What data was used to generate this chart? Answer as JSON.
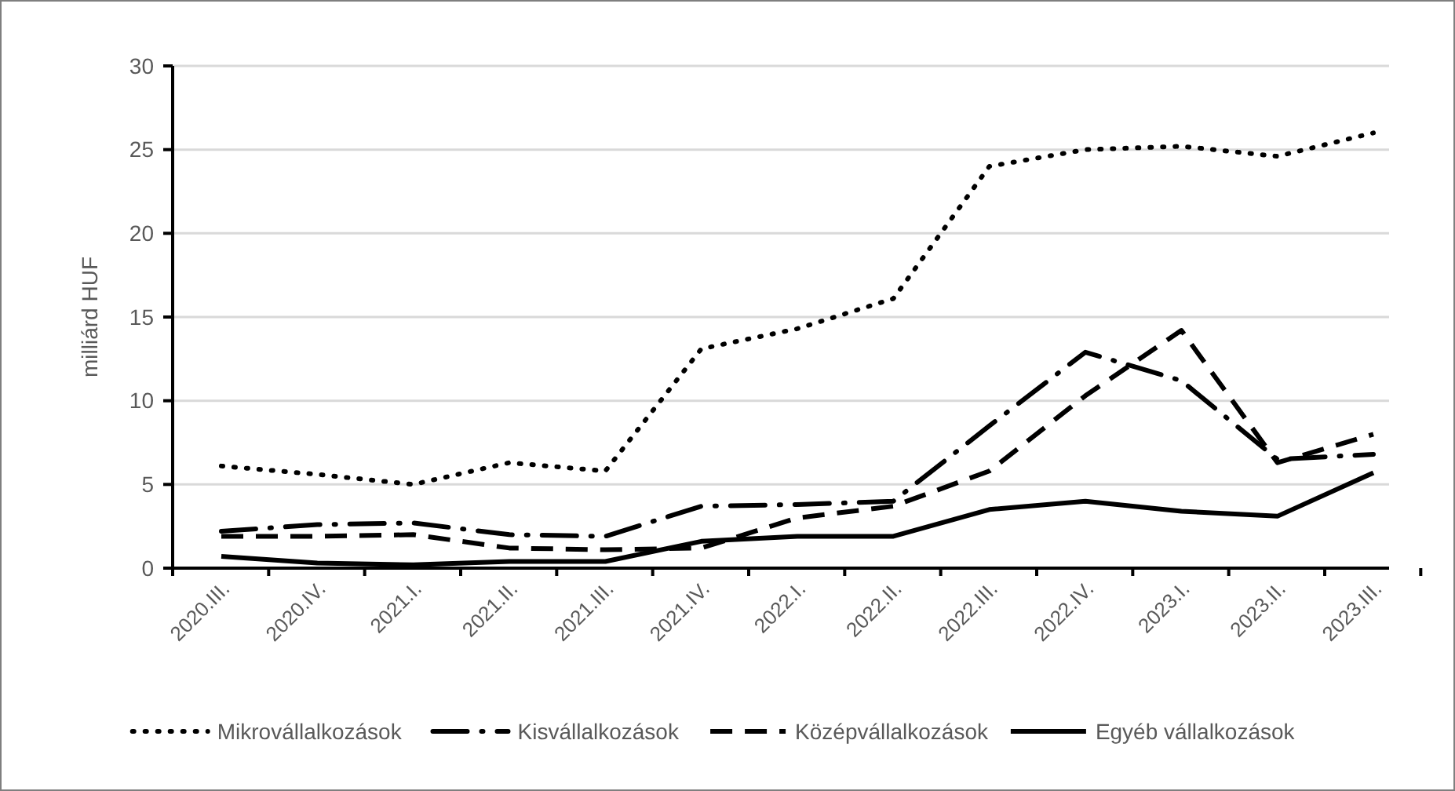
{
  "chart_data": {
    "type": "line",
    "ylabel": "milliárd HUF",
    "categories": [
      "2020.III.",
      "2020.IV.",
      "2021.I.",
      "2021.II.",
      "2021.III.",
      "2021.IV.",
      "2022.I.",
      "2022.II.",
      "2022.III.",
      "2022.IV.",
      "2023.I.",
      "2023.II.",
      "2023.III."
    ],
    "series": [
      {
        "name": "Mikrovállalkozások",
        "color": "#000000",
        "line_style": "dotted",
        "values": [
          6.1,
          5.6,
          5.0,
          6.3,
          5.8,
          13.1,
          14.3,
          16.1,
          24.0,
          25.0,
          25.2,
          24.6,
          26.0
        ]
      },
      {
        "name": "Kisvállalkozások",
        "color": "#000000",
        "line_style": "dashdot",
        "values": [
          2.2,
          2.6,
          2.7,
          2.0,
          1.9,
          3.7,
          3.8,
          4.0,
          8.5,
          12.9,
          11.2,
          6.5,
          6.8
        ]
      },
      {
        "name": "Középvállalkozások",
        "color": "#000000",
        "line_style": "dashed",
        "values": [
          1.9,
          1.9,
          2.0,
          1.2,
          1.1,
          1.2,
          3.0,
          3.7,
          5.8,
          10.3,
          14.2,
          6.3,
          8.0
        ]
      },
      {
        "name": "Egyéb vállalkozások",
        "color": "#000000",
        "line_style": "solid",
        "values": [
          0.7,
          0.3,
          0.2,
          0.4,
          0.4,
          1.6,
          1.9,
          1.9,
          3.5,
          4.0,
          3.4,
          3.1,
          5.7
        ]
      }
    ],
    "ylim": [
      0,
      30
    ],
    "yticks": [
      0,
      5,
      10,
      15,
      20,
      25,
      30
    ],
    "grid": "y",
    "legend": "bottom",
    "marker": "none"
  }
}
